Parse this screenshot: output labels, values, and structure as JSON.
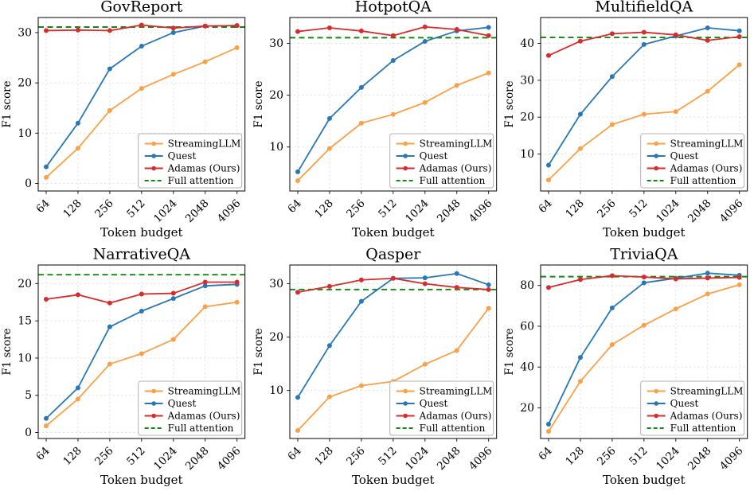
{
  "figure": {
    "xlabel": "Token budget",
    "ylabel": "F1 score",
    "categories": [
      "64",
      "128",
      "256",
      "512",
      "1024",
      "2048",
      "4096"
    ],
    "legend_labels": [
      "StreamingLLM",
      "Quest",
      "Adamas (Ours)",
      "Full attention"
    ],
    "colors": {
      "streamingllm": "#faa046",
      "quest": "#2878b5",
      "adamas": "#d62c2c",
      "full_attention": "#0f8a0f",
      "grid": "#dcdcdc",
      "spine": "#1a1a1a",
      "legend_border": "#b3b3b3"
    }
  },
  "chart_data": [
    {
      "type": "line",
      "title": "GovReport",
      "xlabel": "Token budget",
      "ylabel": "F1 score",
      "x": [
        64,
        128,
        256,
        512,
        1024,
        2048,
        4096
      ],
      "yticks": [
        0,
        10,
        20,
        30
      ],
      "ylim": [
        -1.5,
        33
      ],
      "series": [
        {
          "name": "StreamingLLM",
          "values": [
            1.2,
            7.0,
            14.5,
            18.9,
            21.7,
            24.2,
            27.0
          ]
        },
        {
          "name": "Quest",
          "values": [
            3.3,
            12.0,
            22.8,
            27.3,
            30.0,
            31.3,
            31.4
          ]
        },
        {
          "name": "Adamas (Ours)",
          "values": [
            30.4,
            30.5,
            30.4,
            31.5,
            30.9,
            31.3,
            31.4
          ]
        }
      ],
      "full_attention": 31.1,
      "legend_position": "lower right",
      "grid": true
    },
    {
      "type": "line",
      "title": "HotpotQA",
      "xlabel": "Token budget",
      "ylabel": "F1 score",
      "x": [
        64,
        128,
        256,
        512,
        1024,
        2048,
        4096
      ],
      "yticks": [
        10,
        20,
        30
      ],
      "ylim": [
        1.5,
        35
      ],
      "series": [
        {
          "name": "StreamingLLM",
          "values": [
            3.5,
            9.7,
            14.6,
            16.3,
            18.6,
            21.9,
            24.3
          ]
        },
        {
          "name": "Quest",
          "values": [
            5.2,
            15.5,
            21.5,
            26.7,
            30.4,
            32.4,
            33.1
          ]
        },
        {
          "name": "Adamas (Ours)",
          "values": [
            32.3,
            33.0,
            32.4,
            31.5,
            33.2,
            32.7,
            31.5
          ]
        }
      ],
      "full_attention": 31.1,
      "legend_position": "lower right",
      "grid": true
    },
    {
      "type": "line",
      "title": "MultifieldQA",
      "xlabel": "Token budget",
      "ylabel": "F1 score",
      "x": [
        64,
        128,
        256,
        512,
        1024,
        2048,
        4096
      ],
      "yticks": [
        10,
        20,
        30,
        40
      ],
      "ylim": [
        0,
        47
      ],
      "series": [
        {
          "name": "StreamingLLM",
          "values": [
            3.0,
            11.5,
            18.0,
            20.8,
            21.5,
            27.0,
            34.2
          ]
        },
        {
          "name": "Quest",
          "values": [
            7.0,
            20.8,
            31.0,
            39.7,
            42.0,
            44.2,
            43.4
          ]
        },
        {
          "name": "Adamas (Ours)",
          "values": [
            36.7,
            40.6,
            42.6,
            43.0,
            42.3,
            40.8,
            41.8
          ]
        }
      ],
      "full_attention": 41.6,
      "legend_position": "lower right",
      "grid": true
    },
    {
      "type": "line",
      "title": "NarrativeQA",
      "xlabel": "Token budget",
      "ylabel": "F1 score",
      "x": [
        64,
        128,
        256,
        512,
        1024,
        2048,
        4096
      ],
      "yticks": [
        0,
        5,
        10,
        15,
        20
      ],
      "ylim": [
        -0.8,
        22.5
      ],
      "series": [
        {
          "name": "StreamingLLM",
          "values": [
            0.9,
            4.5,
            9.2,
            10.6,
            12.5,
            16.9,
            17.5
          ]
        },
        {
          "name": "Quest",
          "values": [
            1.9,
            6.0,
            14.2,
            16.3,
            18.0,
            19.7,
            19.9
          ]
        },
        {
          "name": "Adamas (Ours)",
          "values": [
            17.9,
            18.5,
            17.4,
            18.6,
            18.7,
            20.2,
            20.2
          ]
        }
      ],
      "full_attention": 21.2,
      "legend_position": "lower right",
      "grid": true
    },
    {
      "type": "line",
      "title": "Qasper",
      "xlabel": "Token budget",
      "ylabel": "F1 score",
      "x": [
        64,
        128,
        256,
        512,
        1024,
        2048,
        4096
      ],
      "yticks": [
        10,
        20,
        30
      ],
      "ylim": [
        1,
        33.5
      ],
      "series": [
        {
          "name": "StreamingLLM",
          "values": [
            2.5,
            8.8,
            10.9,
            11.7,
            14.9,
            17.5,
            25.4
          ]
        },
        {
          "name": "Quest",
          "values": [
            8.7,
            18.4,
            26.7,
            31.0,
            31.1,
            31.9,
            29.8
          ]
        },
        {
          "name": "Adamas (Ours)",
          "values": [
            28.4,
            29.5,
            30.7,
            31.0,
            30.0,
            29.3,
            28.9
          ]
        }
      ],
      "full_attention": 28.9,
      "legend_position": "lower right",
      "grid": true
    },
    {
      "type": "line",
      "title": "TriviaQA",
      "xlabel": "Token budget",
      "ylabel": "F1 score",
      "x": [
        64,
        128,
        256,
        512,
        1024,
        2048,
        4096
      ],
      "yticks": [
        20,
        40,
        60,
        80
      ],
      "ylim": [
        5,
        90
      ],
      "series": [
        {
          "name": "StreamingLLM",
          "values": [
            8.5,
            33.0,
            51.0,
            60.5,
            68.5,
            75.8,
            80.3
          ]
        },
        {
          "name": "Quest",
          "values": [
            12.0,
            44.7,
            69.0,
            81.3,
            83.5,
            86.0,
            85.0
          ]
        },
        {
          "name": "Adamas (Ours)",
          "values": [
            79.0,
            82.9,
            84.8,
            84.1,
            83.2,
            83.6,
            83.9
          ]
        }
      ],
      "full_attention": 84.3,
      "legend_position": "lower right",
      "grid": true
    }
  ]
}
